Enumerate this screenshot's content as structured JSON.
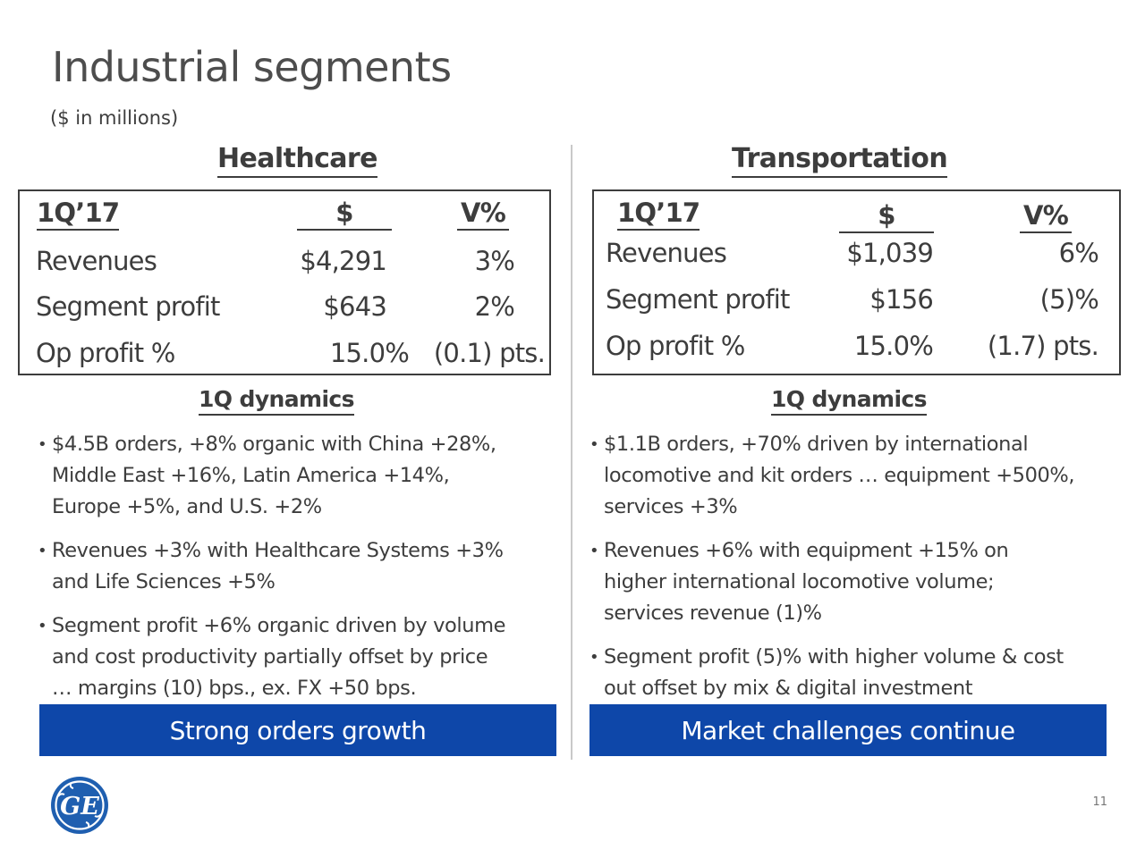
{
  "page": {
    "title": "Industrial segments",
    "subtitle": "($ in millions)",
    "page_number": "11",
    "logo_text": "GE"
  },
  "healthcare": {
    "heading": "Healthcare",
    "table": {
      "headers": [
        "1Q’17",
        "$",
        "V%"
      ],
      "rows": [
        {
          "label": "Revenues",
          "value": "$4,291",
          "change": "3%"
        },
        {
          "label": "Segment profit",
          "value": "$643",
          "change": "2%"
        },
        {
          "label": "Op profit %",
          "value": "15.0%",
          "change": "(0.1) pts."
        }
      ]
    },
    "dynamics_heading": "1Q dynamics",
    "bullets": [
      [
        "$4.5B orders, +8% organic with China +28%,",
        "Middle East +16%, Latin America +14%,",
        "Europe +5%, and U.S. +2%"
      ],
      [
        "Revenues +3% with Healthcare Systems +3%",
        "and Life Sciences +5%"
      ],
      [
        "Segment profit +6% organic driven by volume",
        "and cost productivity partially offset by price",
        "… margins (10) bps., ex. FX +50 bps."
      ]
    ],
    "banner": "Strong orders growth"
  },
  "transportation": {
    "heading": "Transportation",
    "table": {
      "headers": [
        "1Q’17",
        "$",
        "V%"
      ],
      "rows": [
        {
          "label": "Revenues",
          "value": "$1,039",
          "change": "6%"
        },
        {
          "label": "Segment profit",
          "value": "$156",
          "change": "(5)%"
        },
        {
          "label": "Op profit %",
          "value": "15.0%",
          "change": "(1.7) pts."
        }
      ]
    },
    "dynamics_heading": "1Q dynamics",
    "bullets": [
      [
        "$1.1B orders, +70% driven by international",
        "locomotive and kit orders … equipment +500%,",
        "services +3%"
      ],
      [
        "Revenues +6% with equipment +15% on",
        "higher international locomotive volume;",
        "services revenue (1)%"
      ],
      [
        "Segment profit (5)% with higher volume & cost",
        "out offset by mix & digital investment"
      ]
    ],
    "banner": "Market challenges continue"
  },
  "colors": {
    "banner_blue": "#0e47a9",
    "text_gray": "#3d3d3d",
    "logo_blue": "#1f5fb0"
  }
}
